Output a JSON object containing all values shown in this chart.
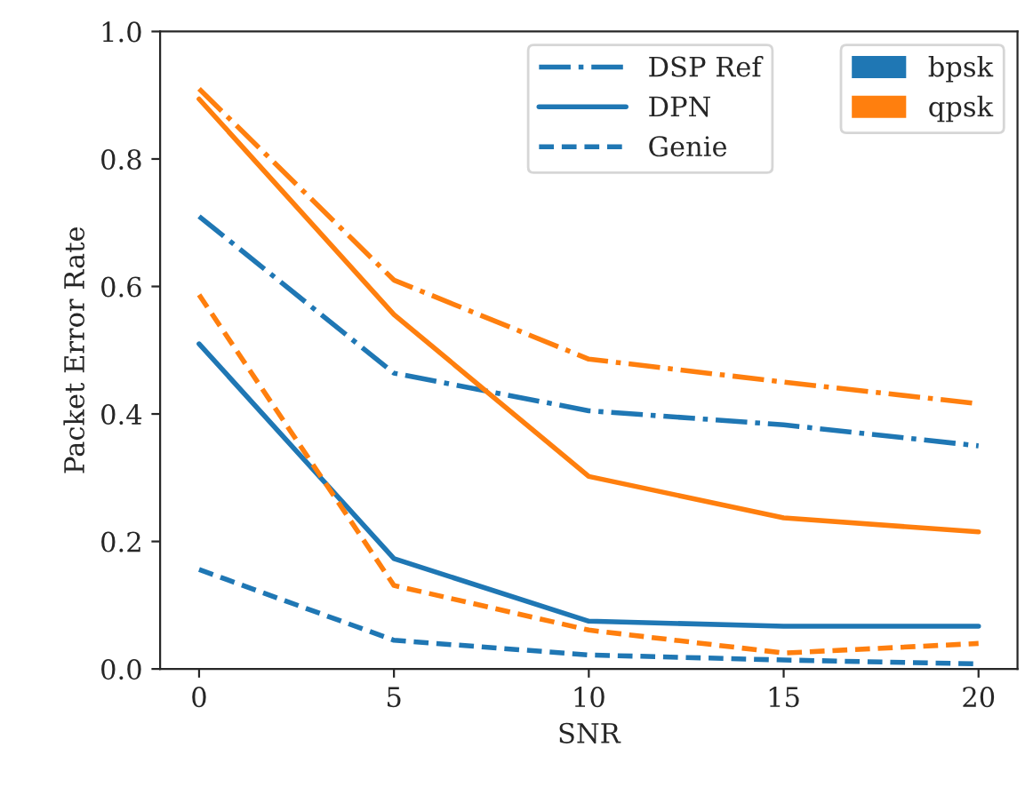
{
  "chart_data": {
    "type": "line",
    "xlabel": "SNR",
    "ylabel": "Packet Error Rate",
    "x": [
      0,
      5,
      10,
      15,
      20
    ],
    "xlim": [
      -1,
      21
    ],
    "xticks": [
      0,
      5,
      10,
      15,
      20
    ],
    "ylim": [
      0,
      1
    ],
    "yticks": [
      {
        "value": 0,
        "label": "0.0"
      },
      0.2,
      0.4,
      0.6,
      0.8,
      {
        "value": 1,
        "label": "1.0"
      }
    ],
    "grid": false,
    "legend": "top right",
    "marker": "none",
    "series": [
      {
        "name": "DSP Ref",
        "color": "#1f77b4",
        "line_style": "dashdot",
        "values": [
          0.71,
          0.464,
          0.405,
          0.383,
          0.35
        ]
      },
      {
        "name": "DPN",
        "color": "#1f77b4",
        "line_style": "solid",
        "values": [
          0.51,
          0.173,
          0.075,
          0.067,
          0.067
        ]
      },
      {
        "name": "Genie",
        "color": "#1f77b4",
        "line_style": "dashed",
        "values": [
          0.156,
          0.045,
          0.022,
          0.014,
          0.008
        ]
      },
      {
        "color": "#ff7f0e",
        "line_style": "dashdot",
        "values": [
          0.91,
          0.61,
          0.486,
          0.45,
          0.416
        ]
      },
      {
        "color": "#ff7f0e",
        "line_style": "solid",
        "values": [
          0.894,
          0.556,
          0.302,
          0.237,
          0.215
        ]
      },
      {
        "color": "#ff7f0e",
        "line_style": "dashed",
        "values": [
          0.587,
          0.131,
          0.061,
          0.025,
          0.04
        ]
      }
    ],
    "annotations": [
      "bpsk",
      "qpsk"
    ]
  }
}
